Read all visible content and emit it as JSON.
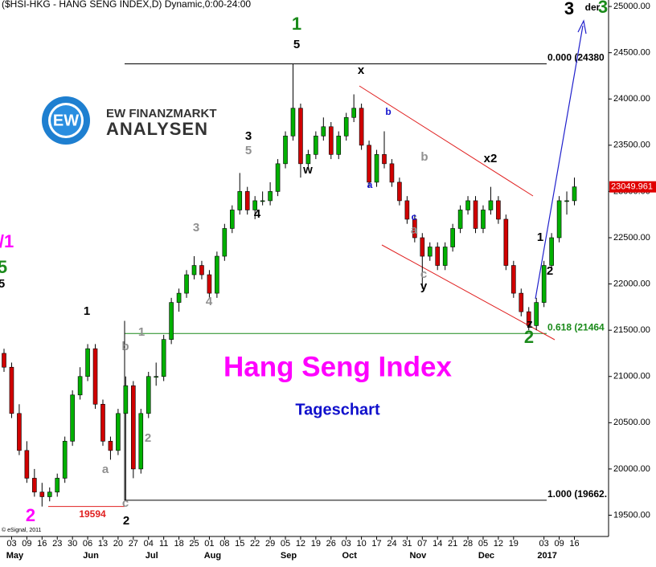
{
  "header": {
    "title": "($HSI-HKG - HANG SENG INDEX,D) Dynamic,0:00-24:00",
    "copyright": "© eSignal, 2011"
  },
  "logo": {
    "mark": "EW",
    "line1": "EW FINANZMARKT",
    "line2": "ANALYSEN"
  },
  "chart_data": {
    "type": "candlestick",
    "title": "Hang Seng Index",
    "subtitle": "Tageschart",
    "categories": [
      null,
      "03",
      null,
      "09",
      null,
      "16",
      null,
      "23",
      null,
      "30",
      null,
      "06",
      null,
      "13",
      null,
      "20",
      null,
      "27",
      null,
      "04",
      null,
      "11",
      null,
      "18",
      null,
      "25",
      null,
      "01",
      null,
      "08",
      null,
      "15",
      null,
      "22",
      null,
      "29",
      null,
      "05",
      null,
      "12",
      null,
      "19",
      null,
      "26",
      null,
      "03",
      null,
      "10",
      null,
      "17",
      null,
      "24",
      null,
      "31",
      null,
      "07",
      null,
      "14",
      null,
      "21",
      null,
      "28",
      null,
      "05",
      null,
      "12",
      null,
      "19",
      null,
      null,
      null,
      "03",
      null,
      "09",
      null,
      "16"
    ],
    "month_labels": [
      null,
      "May",
      null,
      null,
      null,
      null,
      null,
      null,
      null,
      null,
      null,
      "Jun",
      null,
      null,
      null,
      null,
      null,
      null,
      null,
      "Jul",
      null,
      null,
      null,
      null,
      null,
      null,
      null,
      "Aug",
      null,
      null,
      null,
      null,
      null,
      null,
      null,
      null,
      null,
      "Sep",
      null,
      null,
      null,
      null,
      null,
      null,
      null,
      "Oct",
      null,
      null,
      null,
      null,
      null,
      null,
      null,
      null,
      "Nov",
      null,
      null,
      null,
      null,
      null,
      null,
      null,
      null,
      "Dec",
      null,
      null,
      null,
      null,
      null,
      null,
      null,
      "2017",
      null,
      null,
      null,
      null
    ],
    "open": [
      21250,
      21100,
      20600,
      20200,
      19900,
      19750,
      19700,
      19750,
      19900,
      20300,
      20800,
      21000,
      21300,
      20700,
      20300,
      20200,
      20600,
      20900,
      20000,
      20600,
      21000,
      21000,
      21400,
      21800,
      21900,
      22100,
      22200,
      22100,
      21900,
      22300,
      22600,
      22800,
      23000,
      22800,
      22900,
      22900,
      23000,
      23300,
      23600,
      23900,
      23300,
      23400,
      23600,
      23700,
      23400,
      23600,
      23800,
      23900,
      23500,
      23100,
      23400,
      23300,
      23100,
      22900,
      22700,
      22500,
      22300,
      22400,
      22200,
      22400,
      22600,
      22800,
      22900,
      22600,
      22800,
      22900,
      22700,
      22200,
      21900,
      21700,
      21550,
      21800,
      22200,
      22500,
      22900,
      22900
    ],
    "high": [
      21300,
      21150,
      20700,
      20300,
      20000,
      19850,
      19800,
      19950,
      20350,
      20850,
      21100,
      21350,
      21350,
      20750,
      20350,
      20650,
      21000,
      20950,
      20650,
      21050,
      21150,
      21450,
      21850,
      21950,
      22150,
      22300,
      22250,
      22150,
      22350,
      22650,
      22850,
      23200,
      23050,
      22950,
      23000,
      23100,
      23350,
      23650,
      24380,
      23950,
      23450,
      23650,
      23800,
      23750,
      23650,
      23850,
      24050,
      23950,
      23550,
      23450,
      23650,
      23350,
      23150,
      22950,
      22750,
      22550,
      22450,
      22450,
      22450,
      22650,
      22850,
      22950,
      22950,
      22850,
      23050,
      22950,
      22750,
      22250,
      21950,
      21750,
      21850,
      22250,
      22550,
      22950,
      23000,
      23150
    ],
    "low": [
      21050,
      20550,
      20150,
      19850,
      19700,
      19594,
      19650,
      19700,
      19850,
      20250,
      20750,
      20950,
      20650,
      20250,
      20100,
      20150,
      19662,
      19900,
      19950,
      20550,
      20900,
      20950,
      21350,
      21700,
      21850,
      22050,
      22050,
      21850,
      21850,
      22250,
      22550,
      22750,
      22750,
      22700,
      22850,
      22850,
      22950,
      23250,
      23550,
      23150,
      23250,
      23350,
      23550,
      23350,
      23350,
      23550,
      23750,
      23450,
      23050,
      23050,
      23250,
      23050,
      22850,
      22650,
      22450,
      21950,
      22250,
      22150,
      22150,
      22350,
      22550,
      22750,
      22550,
      22550,
      22750,
      22650,
      22150,
      21850,
      21650,
      21500,
      21500,
      21750,
      22150,
      22450,
      22750,
      22850
    ],
    "close": [
      21100,
      20600,
      20200,
      19900,
      19750,
      19700,
      19750,
      19900,
      20300,
      20800,
      21000,
      21300,
      20700,
      20300,
      20200,
      20600,
      20900,
      20000,
      20600,
      21000,
      21000,
      21400,
      21800,
      21900,
      22100,
      22200,
      22100,
      21900,
      22300,
      22600,
      22800,
      23000,
      22800,
      22900,
      22900,
      23000,
      23300,
      23600,
      23900,
      23300,
      23400,
      23600,
      23700,
      23400,
      23600,
      23800,
      23900,
      23500,
      23100,
      23400,
      23300,
      23100,
      22900,
      22700,
      22500,
      22300,
      22400,
      22200,
      22400,
      22600,
      22800,
      22900,
      22600,
      22800,
      22900,
      22700,
      22200,
      21900,
      21700,
      21550,
      21800,
      22200,
      22500,
      22900,
      22900,
      23050
    ],
    "up_color": "#00b000",
    "down_color": "#d00000",
    "ylim": [
      19270,
      25070
    ],
    "yticks": [
      {
        "value": 19500,
        "label": "19500.00"
      },
      {
        "value": 20000,
        "label": "20000.00"
      },
      {
        "value": 20500,
        "label": "20500.00"
      },
      {
        "value": 21000,
        "label": "21000.00"
      },
      {
        "value": 21500,
        "label": "21500.00"
      },
      {
        "value": 22000,
        "label": "22000.00"
      },
      {
        "value": 22500,
        "label": "22500.00"
      },
      {
        "value": 23000,
        "label": "23000.00"
      },
      {
        "value": 23500,
        "label": "23500.00"
      },
      {
        "value": 24000,
        "label": "24000.00"
      },
      {
        "value": 24500,
        "label": "24500.00"
      },
      {
        "value": 25000,
        "label": "25000.00"
      }
    ],
    "last_price": 23049.961,
    "levels": [
      {
        "value": 24380,
        "label": "0.000 (24380",
        "color": "#000000"
      },
      {
        "value": 21464,
        "label": "0.618 (21464",
        "color": "#1a8a1a"
      },
      {
        "value": 19662,
        "label": "1.000 (19662.",
        "color": "#000000"
      },
      {
        "value": 19594,
        "label": "19594",
        "color": "#e02020"
      }
    ],
    "annotations": [
      "3",
      "der",
      "3",
      "1",
      "5",
      "x",
      "b",
      "3",
      "5",
      "w",
      "a",
      "b",
      "x2",
      "4",
      "c",
      "a",
      "3",
      "1",
      "2",
      "c",
      "y",
      "4",
      "/1",
      "5",
      "5",
      "1",
      "1",
      "b",
      "z",
      "2",
      "a",
      "2",
      "c",
      "2",
      "2"
    ]
  }
}
